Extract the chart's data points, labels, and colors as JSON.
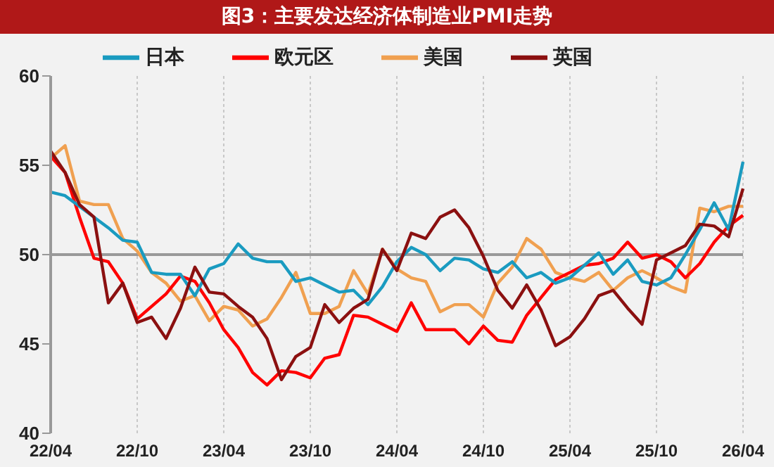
{
  "chart_data": {
    "type": "line",
    "title": "图3：主要发达经济体制造业PMI走势",
    "categories": [
      "22/04",
      null,
      null,
      null,
      null,
      null,
      "22/10",
      null,
      null,
      null,
      null,
      null,
      "23/04",
      null,
      null,
      null,
      null,
      null,
      "23/10",
      null,
      null,
      null,
      null,
      null,
      "24/04",
      null,
      null,
      null,
      null,
      null,
      "24/10",
      null,
      null,
      null,
      null,
      null,
      "25/04",
      null,
      null,
      null,
      null,
      null,
      "25/10",
      null,
      null,
      null,
      null,
      null,
      "26/04"
    ],
    "series": [
      {
        "name": "美国",
        "color": "#f0a050",
        "values": [
          55.4,
          56.1,
          53.0,
          52.8,
          52.8,
          50.9,
          50.2,
          49.0,
          48.4,
          47.4,
          47.7,
          46.3,
          47.1,
          46.9,
          46.0,
          46.4,
          47.6,
          49.0,
          46.7,
          46.7,
          47.1,
          49.1,
          47.8,
          50.3,
          49.2,
          48.7,
          48.5,
          46.8,
          47.2,
          47.2,
          46.5,
          48.4,
          49.3,
          50.9,
          50.3,
          49.0,
          48.7,
          48.5,
          49.0,
          48.0,
          48.7,
          49.1,
          48.7,
          48.2,
          47.9,
          52.6,
          52.4,
          52.7,
          52.7
        ]
      },
      {
        "name": "欧元区",
        "color": "#ff0000",
        "values": [
          55.5,
          54.6,
          52.1,
          49.8,
          49.6,
          48.4,
          46.4,
          47.1,
          47.8,
          48.8,
          48.5,
          47.3,
          45.8,
          44.8,
          43.4,
          42.7,
          43.5,
          43.4,
          43.1,
          44.2,
          44.4,
          46.6,
          46.5,
          46.1,
          45.7,
          47.3,
          45.8,
          45.8,
          45.8,
          45.0,
          46.0,
          45.2,
          45.1,
          46.6,
          47.6,
          48.6,
          49.0,
          49.4,
          49.5,
          49.8,
          50.7,
          49.8,
          50.0,
          49.6,
          48.7,
          49.5,
          50.7,
          51.6,
          52.2
        ]
      },
      {
        "name": "日本",
        "color": "#1a9bc0",
        "values": [
          53.5,
          53.3,
          52.7,
          52.1,
          51.5,
          50.8,
          50.7,
          49.0,
          48.9,
          48.9,
          47.7,
          49.2,
          49.5,
          50.6,
          49.8,
          49.6,
          49.6,
          48.5,
          48.7,
          48.3,
          47.9,
          48.0,
          47.2,
          48.2,
          49.6,
          50.4,
          50.0,
          49.1,
          49.8,
          49.7,
          49.2,
          49.0,
          49.6,
          48.7,
          49.0,
          48.4,
          48.7,
          49.4,
          50.1,
          48.9,
          49.7,
          48.5,
          48.3,
          48.7,
          50.0,
          51.4,
          52.9,
          51.4,
          55.2
        ]
      },
      {
        "name": "英国",
        "color": "#8b1010",
        "values": [
          55.8,
          54.6,
          52.8,
          52.1,
          47.3,
          48.4,
          46.2,
          46.5,
          45.3,
          47.0,
          49.3,
          47.9,
          47.8,
          47.1,
          46.5,
          45.3,
          43.0,
          44.3,
          44.8,
          47.2,
          46.2,
          47.0,
          47.5,
          50.3,
          49.1,
          51.2,
          50.9,
          52.1,
          52.5,
          51.5,
          49.9,
          48.0,
          47.0,
          48.3,
          46.9,
          44.9,
          45.4,
          46.4,
          47.7,
          48.0,
          47.0,
          46.1,
          49.7,
          50.1,
          50.5,
          51.7,
          51.6,
          51.0,
          53.7
        ]
      }
    ],
    "ylim": [
      40,
      60
    ],
    "yticks": [
      40,
      45,
      50,
      55,
      60
    ],
    "grid": "x",
    "legend": "top",
    "marker": "none",
    "ref_lines": [
      {
        "axis": "y",
        "value": 50,
        "color": "#999999"
      }
    ]
  }
}
